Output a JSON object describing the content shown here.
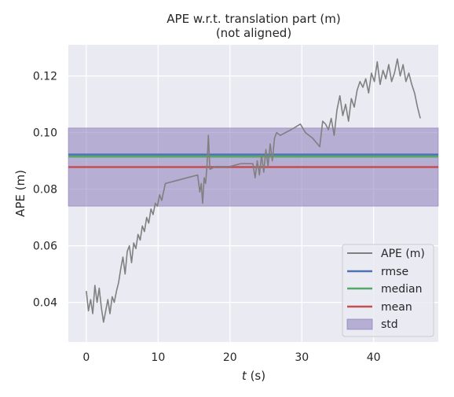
{
  "chart_data": {
    "type": "line",
    "title": "APE w.r.t. translation part (m)",
    "subtitle": "(not aligned)",
    "xlabel_italic": "t",
    "xlabel_rest": " (s)",
    "ylabel": "APE (m)",
    "xlim": [
      -2.5,
      49
    ],
    "ylim": [
      0.026,
      0.131
    ],
    "xticks": [
      0,
      10,
      20,
      30,
      40
    ],
    "yticks": [
      0.04,
      0.06,
      0.08,
      0.1,
      0.12
    ],
    "ytick_labels": [
      "0.04",
      "0.06",
      "0.08",
      "0.10",
      "0.12"
    ],
    "grid": true,
    "legend_position": "lower right",
    "stats": {
      "rmse": 0.0922,
      "median": 0.0915,
      "mean": 0.0878,
      "std": 0.0138
    },
    "series": [
      {
        "name": "APE (m)",
        "color": "#808080",
        "x": [
          0.0,
          0.3,
          0.6,
          0.9,
          1.2,
          1.5,
          1.8,
          2.1,
          2.4,
          2.7,
          3.0,
          3.3,
          3.6,
          3.9,
          4.2,
          4.5,
          4.8,
          5.1,
          5.4,
          5.7,
          6.0,
          6.3,
          6.6,
          6.9,
          7.2,
          7.5,
          7.8,
          8.1,
          8.4,
          8.7,
          9.0,
          9.3,
          9.6,
          9.9,
          10.2,
          10.5,
          11.0,
          12.5,
          14.0,
          15.5,
          15.8,
          16.0,
          16.2,
          16.4,
          16.6,
          16.8,
          17.0,
          17.2,
          18.0,
          20.0,
          21.5,
          23.2,
          23.5,
          23.8,
          24.1,
          24.4,
          24.7,
          25.0,
          25.3,
          25.6,
          25.9,
          26.2,
          26.5,
          27.0,
          28.5,
          29.8,
          30.5,
          31.5,
          32.5,
          32.9,
          33.3,
          33.7,
          34.1,
          34.5,
          34.9,
          35.3,
          35.7,
          36.1,
          36.5,
          36.9,
          37.3,
          37.7,
          38.1,
          38.5,
          38.9,
          39.3,
          39.7,
          40.1,
          40.5,
          40.9,
          41.3,
          41.7,
          42.1,
          42.5,
          42.9,
          43.3,
          43.7,
          44.1,
          44.5,
          44.9,
          45.3,
          45.7,
          46.1,
          46.5
        ],
        "y": [
          0.044,
          0.037,
          0.041,
          0.036,
          0.046,
          0.04,
          0.045,
          0.038,
          0.033,
          0.037,
          0.041,
          0.036,
          0.042,
          0.04,
          0.044,
          0.047,
          0.052,
          0.056,
          0.05,
          0.058,
          0.06,
          0.054,
          0.061,
          0.059,
          0.064,
          0.062,
          0.067,
          0.065,
          0.07,
          0.068,
          0.073,
          0.071,
          0.075,
          0.074,
          0.078,
          0.076,
          0.082,
          0.083,
          0.084,
          0.085,
          0.079,
          0.082,
          0.075,
          0.084,
          0.082,
          0.088,
          0.099,
          0.087,
          0.088,
          0.088,
          0.089,
          0.089,
          0.084,
          0.09,
          0.085,
          0.092,
          0.086,
          0.094,
          0.088,
          0.096,
          0.09,
          0.098,
          0.1,
          0.099,
          0.101,
          0.103,
          0.1,
          0.098,
          0.095,
          0.104,
          0.103,
          0.101,
          0.105,
          0.099,
          0.108,
          0.113,
          0.106,
          0.11,
          0.104,
          0.112,
          0.109,
          0.115,
          0.118,
          0.116,
          0.119,
          0.114,
          0.121,
          0.118,
          0.125,
          0.117,
          0.122,
          0.119,
          0.124,
          0.118,
          0.121,
          0.126,
          0.12,
          0.124,
          0.118,
          0.121,
          0.117,
          0.114,
          0.109,
          0.105
        ]
      },
      {
        "name": "rmse",
        "color": "#4c72b0"
      },
      {
        "name": "median",
        "color": "#55a868"
      },
      {
        "name": "mean",
        "color": "#c44e52"
      },
      {
        "name": "std",
        "color": "#8172b3"
      }
    ]
  }
}
